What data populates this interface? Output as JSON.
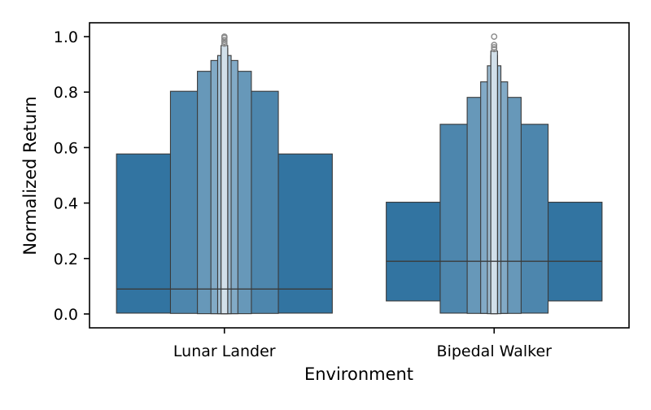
{
  "chart_data": {
    "type": "boxen",
    "title": "",
    "xlabel": "Environment",
    "ylabel": "Normalized Return",
    "ylim": [
      -0.05,
      1.05
    ],
    "yticks": [
      0.0,
      0.2,
      0.4,
      0.6,
      0.8,
      1.0
    ],
    "ytick_labels": [
      "0.0",
      "0.2",
      "0.4",
      "0.6",
      "0.8",
      "1.0"
    ],
    "grid": false,
    "legend": "none",
    "colors": {
      "base": "#3274a1",
      "edge": "#3a3a3a",
      "outlier": "#888888"
    },
    "categories": [
      {
        "name": "Lunar Lander",
        "median": 0.09,
        "boxes": [
          {
            "low": 0.003,
            "high": 0.577
          },
          {
            "low": 0.002,
            "high": 0.803
          },
          {
            "low": 0.001,
            "high": 0.875
          },
          {
            "low": 0.001,
            "high": 0.914
          },
          {
            "low": 0.001,
            "high": 0.932
          },
          {
            "low": 0.001,
            "high": 0.957
          },
          {
            "low": 0.001,
            "high": 0.968
          }
        ],
        "outliers": [
          0.975,
          0.982,
          0.988,
          0.996,
          1.0
        ]
      },
      {
        "name": "Bipedal Walker",
        "median": 0.19,
        "boxes": [
          {
            "low": 0.047,
            "high": 0.403
          },
          {
            "low": 0.003,
            "high": 0.684
          },
          {
            "low": 0.002,
            "high": 0.781
          },
          {
            "low": 0.002,
            "high": 0.837
          },
          {
            "low": 0.001,
            "high": 0.895
          },
          {
            "low": 0.001,
            "high": 0.932
          },
          {
            "low": 0.001,
            "high": 0.948
          }
        ],
        "outliers": [
          0.955,
          0.962,
          0.97,
          1.0
        ]
      }
    ]
  }
}
